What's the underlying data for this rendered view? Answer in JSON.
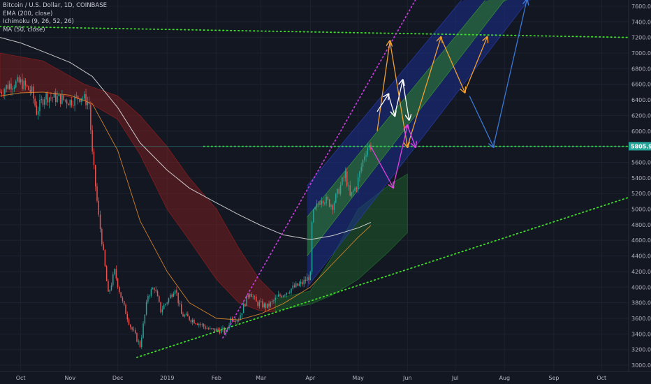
{
  "legend": {
    "symbol": "Bitcoin / U.S. Dollar, 1D, COINBASE",
    "ema": "EMA (200, close)",
    "ichimoku": "Ichimoku (9, 26, 52, 26)",
    "ma": "MA (50, close)"
  },
  "price_tag": "5805.95",
  "colors": {
    "background": "#131722",
    "grid": "#1e2230",
    "up": "#26a69a",
    "down": "#ef5350",
    "ema": "#d9d9d9",
    "ma": "#e08a2c",
    "cloud_bear": "#8b1e1e",
    "cloud_bull": "#1e6b2a",
    "trend_green": "#3fdc2a",
    "trend_magenta": "#c23ad9",
    "channel_blue": "#1b2d8c",
    "channel_green": "#2c7a2a",
    "orange_path": "#f0a030",
    "white_path": "#ffffff",
    "pink_path": "#e040e0",
    "blue_path": "#3a78d8",
    "price_tag": "#26a69a"
  },
  "chart_data": {
    "type": "candlestick",
    "x_axis": {
      "ticks": [
        {
          "label": "Oct",
          "date": "2018-10-01"
        },
        {
          "label": "Nov",
          "date": "2018-11-01"
        },
        {
          "label": "Dec",
          "date": "2018-12-01"
        },
        {
          "label": "2019",
          "date": "2019-01-01"
        },
        {
          "label": "Feb",
          "date": "2019-02-01"
        },
        {
          "label": "Mar",
          "date": "2019-03-01"
        },
        {
          "label": "Apr",
          "date": "2019-04-01"
        },
        {
          "label": "May",
          "date": "2019-05-01"
        },
        {
          "label": "Jun",
          "date": "2019-06-01"
        },
        {
          "label": "Jul",
          "date": "2019-07-01"
        },
        {
          "label": "Aug",
          "date": "2019-08-01"
        },
        {
          "label": "Sep",
          "date": "2019-09-01"
        },
        {
          "label": "Oct",
          "date": "2019-10-01"
        }
      ],
      "range": [
        "2018-09-18",
        "2019-10-18"
      ]
    },
    "y_axis": {
      "ticks": [
        3000,
        3200,
        3400,
        3600,
        3800,
        4000,
        4200,
        4400,
        4600,
        4800,
        5000,
        5200,
        5400,
        5600,
        5800,
        6000,
        6200,
        6400,
        6600,
        6800,
        7000,
        7200,
        7400,
        7600
      ],
      "range": [
        2920,
        7680
      ],
      "position": "right"
    },
    "price_path": [
      [
        "2018-09-18",
        6500
      ],
      [
        "2018-09-24",
        6600
      ],
      [
        "2018-10-01",
        6620
      ],
      [
        "2018-10-08",
        6500
      ],
      [
        "2018-10-11",
        6250
      ],
      [
        "2018-10-16",
        6450
      ],
      [
        "2018-10-25",
        6420
      ],
      [
        "2018-11-01",
        6380
      ],
      [
        "2018-11-08",
        6450
      ],
      [
        "2018-11-13",
        6350
      ],
      [
        "2018-11-15",
        5700
      ],
      [
        "2018-11-19",
        4900
      ],
      [
        "2018-11-21",
        4600
      ],
      [
        "2018-11-25",
        3900
      ],
      [
        "2018-11-29",
        4200
      ],
      [
        "2018-12-04",
        3800
      ],
      [
        "2018-12-09",
        3500
      ],
      [
        "2018-12-15",
        3250
      ],
      [
        "2018-12-20",
        3900
      ],
      [
        "2018-12-24",
        4000
      ],
      [
        "2018-12-28",
        3700
      ],
      [
        "2019-01-02",
        3850
      ],
      [
        "2019-01-06",
        4000
      ],
      [
        "2019-01-10",
        3650
      ],
      [
        "2019-01-15",
        3600
      ],
      [
        "2019-01-20",
        3550
      ],
      [
        "2019-01-28",
        3450
      ],
      [
        "2019-02-04",
        3450
      ],
      [
        "2019-02-07",
        3420
      ],
      [
        "2019-02-10",
        3600
      ],
      [
        "2019-02-15",
        3600
      ],
      [
        "2019-02-22",
        3950
      ],
      [
        "2019-02-26",
        3800
      ],
      [
        "2019-03-05",
        3750
      ],
      [
        "2019-03-12",
        3880
      ],
      [
        "2019-03-20",
        3980
      ],
      [
        "2019-03-27",
        4050
      ],
      [
        "2019-04-01",
        4150
      ],
      [
        "2019-04-02",
        4800
      ],
      [
        "2019-04-03",
        4950
      ],
      [
        "2019-04-08",
        5150
      ],
      [
        "2019-04-15",
        5050
      ],
      [
        "2019-04-23",
        5450
      ],
      [
        "2019-04-26",
        5150
      ],
      [
        "2019-04-30",
        5300
      ],
      [
        "2019-05-05",
        5700
      ],
      [
        "2019-05-07",
        5800
      ],
      [
        "2019-05-09",
        5810
      ]
    ],
    "series": [
      {
        "name": "EMA (200, close)",
        "points": [
          [
            "2018-09-18",
            7200
          ],
          [
            "2018-10-01",
            7130
          ],
          [
            "2018-10-15",
            7020
          ],
          [
            "2018-11-01",
            6880
          ],
          [
            "2018-11-15",
            6700
          ],
          [
            "2018-12-01",
            6300
          ],
          [
            "2018-12-15",
            5850
          ],
          [
            "2019-01-01",
            5500
          ],
          [
            "2019-01-15",
            5270
          ],
          [
            "2019-02-01",
            5080
          ],
          [
            "2019-02-15",
            4930
          ],
          [
            "2019-03-01",
            4790
          ],
          [
            "2019-03-15",
            4670
          ],
          [
            "2019-04-01",
            4610
          ],
          [
            "2019-04-15",
            4660
          ],
          [
            "2019-05-01",
            4760
          ],
          [
            "2019-05-09",
            4830
          ]
        ]
      },
      {
        "name": "MA (50, close)",
        "points": [
          [
            "2018-09-18",
            6450
          ],
          [
            "2018-10-01",
            6490
          ],
          [
            "2018-10-15",
            6500
          ],
          [
            "2018-11-01",
            6460
          ],
          [
            "2018-11-15",
            6350
          ],
          [
            "2018-12-01",
            5750
          ],
          [
            "2018-12-15",
            4850
          ],
          [
            "2019-01-01",
            4200
          ],
          [
            "2019-01-15",
            3800
          ],
          [
            "2019-02-01",
            3600
          ],
          [
            "2019-02-15",
            3580
          ],
          [
            "2019-03-01",
            3660
          ],
          [
            "2019-03-15",
            3790
          ],
          [
            "2019-04-01",
            4000
          ],
          [
            "2019-04-15",
            4300
          ],
          [
            "2019-05-01",
            4640
          ],
          [
            "2019-05-09",
            4790
          ]
        ]
      }
    ],
    "ichimoku_cloud_bear": {
      "top": [
        [
          "2018-09-18",
          7000
        ],
        [
          "2018-10-15",
          6900
        ],
        [
          "2018-11-10",
          6600
        ],
        [
          "2018-12-01",
          6450
        ],
        [
          "2018-12-15",
          6200
        ],
        [
          "2019-01-01",
          5800
        ],
        [
          "2019-01-15",
          5400
        ],
        [
          "2019-02-01",
          5000
        ],
        [
          "2019-02-15",
          4500
        ],
        [
          "2019-02-28",
          4100
        ],
        [
          "2019-03-10",
          3900
        ]
      ],
      "bottom": [
        [
          "2018-09-18",
          6500
        ],
        [
          "2018-10-15",
          6500
        ],
        [
          "2018-11-10",
          6400
        ],
        [
          "2018-12-01",
          6150
        ],
        [
          "2018-12-15",
          5700
        ],
        [
          "2019-01-01",
          5000
        ],
        [
          "2019-01-15",
          4600
        ],
        [
          "2019-02-01",
          4100
        ],
        [
          "2019-02-15",
          3800
        ],
        [
          "2019-02-28",
          3700
        ],
        [
          "2019-03-10",
          3680
        ]
      ]
    },
    "ichimoku_cloud_bull": {
      "top": [
        [
          "2019-03-10",
          3850
        ],
        [
          "2019-04-01",
          3950
        ],
        [
          "2019-04-15",
          4400
        ],
        [
          "2019-05-01",
          5000
        ],
        [
          "2019-05-20",
          5300
        ],
        [
          "2019-06-01",
          5450
        ]
      ],
      "bottom": [
        [
          "2019-03-10",
          3700
        ],
        [
          "2019-04-01",
          3780
        ],
        [
          "2019-04-15",
          3900
        ],
        [
          "2019-05-01",
          4100
        ],
        [
          "2019-05-20",
          4450
        ],
        [
          "2019-06-01",
          4700
        ]
      ]
    },
    "overlays": {
      "support_line_dotted": [
        [
          "2018-12-13",
          3100
        ],
        [
          "2019-10-18",
          5150
        ]
      ],
      "upper_horizontal_dotted": [
        [
          "2018-09-18",
          7340
        ],
        [
          "2019-10-18",
          7200
        ]
      ],
      "current_level_dotted": [
        [
          "2019-01-24",
          5805
        ],
        [
          "2019-10-18",
          5805
        ]
      ],
      "magenta_dotted": [
        [
          "2019-02-05",
          3350
        ],
        [
          "2019-06-06",
          7680
        ]
      ],
      "channel": {
        "outer_low": [
          [
            "2019-03-30",
            4000
          ],
          [
            "2019-08-16",
            7680
          ]
        ],
        "outer_high": [
          [
            "2019-03-30",
            5300
          ],
          [
            "2019-07-05",
            7680
          ]
        ],
        "inner_low": [
          [
            "2019-03-30",
            4400
          ],
          [
            "2019-08-01",
            7680
          ]
        ],
        "inner_high": [
          [
            "2019-03-30",
            4900
          ],
          [
            "2019-07-20",
            7680
          ]
        ]
      },
      "orange_path": [
        [
          "2019-05-13",
          6000
        ],
        [
          "2019-05-21",
          7150
        ],
        [
          "2019-06-01",
          5800
        ],
        [
          "2019-06-22",
          7200
        ],
        [
          "2019-07-07",
          6500
        ],
        [
          "2019-07-21",
          7200
        ]
      ],
      "white_path": [
        [
          "2019-05-13",
          6250
        ],
        [
          "2019-05-20",
          6470
        ],
        [
          "2019-05-24",
          6200
        ],
        [
          "2019-05-29",
          6650
        ],
        [
          "2019-06-02",
          6150
        ]
      ],
      "pink_path": [
        [
          "2019-05-09",
          5800
        ],
        [
          "2019-05-23",
          5280
        ],
        [
          "2019-06-01",
          6070
        ],
        [
          "2019-06-06",
          5800
        ]
      ],
      "blue_path": [
        [
          "2019-07-10",
          6450
        ],
        [
          "2019-07-25",
          5800
        ],
        [
          "2019-08-15",
          7680
        ]
      ]
    }
  }
}
